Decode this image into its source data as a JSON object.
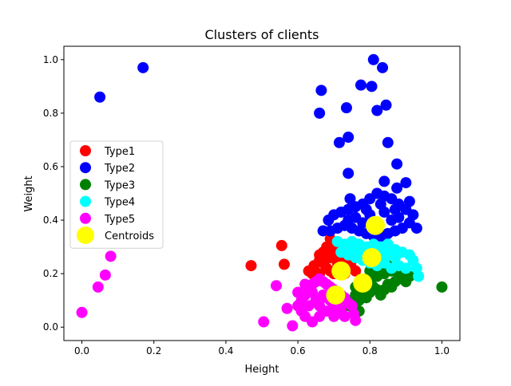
{
  "chart_data": {
    "type": "scatter",
    "title": "Clusters of clients",
    "xlabel": "Height",
    "ylabel": "Weight",
    "xlim": [
      -0.05,
      1.05
    ],
    "ylim": [
      -0.05,
      1.05
    ],
    "xticks": [
      0.0,
      0.2,
      0.4,
      0.6,
      0.8,
      1.0
    ],
    "yticks": [
      0.0,
      0.2,
      0.4,
      0.6,
      0.8,
      1.0
    ],
    "xtick_labels": [
      "0.0",
      "0.2",
      "0.4",
      "0.6",
      "0.8",
      "1.0"
    ],
    "ytick_labels": [
      "0.0",
      "0.2",
      "0.4",
      "0.6",
      "0.8",
      "1.0"
    ],
    "grid": false,
    "legend_position": "center-left",
    "series": [
      {
        "name": "Type1",
        "color": "#ff0000",
        "points": [
          [
            0.47,
            0.23
          ],
          [
            0.555,
            0.305
          ],
          [
            0.562,
            0.235
          ],
          [
            0.63,
            0.21
          ],
          [
            0.645,
            0.23
          ],
          [
            0.66,
            0.25
          ],
          [
            0.67,
            0.28
          ],
          [
            0.68,
            0.3
          ],
          [
            0.69,
            0.33
          ],
          [
            0.7,
            0.31
          ],
          [
            0.71,
            0.29
          ],
          [
            0.72,
            0.27
          ],
          [
            0.73,
            0.26
          ],
          [
            0.74,
            0.24
          ],
          [
            0.75,
            0.22
          ],
          [
            0.76,
            0.21
          ],
          [
            0.68,
            0.22
          ],
          [
            0.7,
            0.2
          ],
          [
            0.72,
            0.22
          ],
          [
            0.66,
            0.2
          ],
          [
            0.65,
            0.18
          ],
          [
            0.69,
            0.26
          ],
          [
            0.67,
            0.24
          ],
          [
            0.71,
            0.24
          ],
          [
            0.64,
            0.2
          ],
          [
            0.75,
            0.25
          ],
          [
            0.73,
            0.2
          ],
          [
            0.69,
            0.21
          ],
          [
            0.66,
            0.27
          ],
          [
            0.7,
            0.28
          ]
        ]
      },
      {
        "name": "Type2",
        "color": "#0000ff",
        "points": [
          [
            0.05,
            0.86
          ],
          [
            0.17,
            0.97
          ],
          [
            0.66,
            0.8
          ],
          [
            0.665,
            0.885
          ],
          [
            0.735,
            0.82
          ],
          [
            0.775,
            0.905
          ],
          [
            0.805,
            0.9
          ],
          [
            0.81,
            1.0
          ],
          [
            0.82,
            0.81
          ],
          [
            0.835,
            0.97
          ],
          [
            0.845,
            0.83
          ],
          [
            0.85,
            0.69
          ],
          [
            0.715,
            0.69
          ],
          [
            0.74,
            0.71
          ],
          [
            0.875,
            0.61
          ],
          [
            0.74,
            0.575
          ],
          [
            0.84,
            0.545
          ],
          [
            0.9,
            0.54
          ],
          [
            0.875,
            0.52
          ],
          [
            0.745,
            0.48
          ],
          [
            0.91,
            0.47
          ],
          [
            0.93,
            0.37
          ],
          [
            0.685,
            0.4
          ],
          [
            0.7,
            0.42
          ],
          [
            0.72,
            0.43
          ],
          [
            0.74,
            0.44
          ],
          [
            0.76,
            0.45
          ],
          [
            0.78,
            0.46
          ],
          [
            0.8,
            0.48
          ],
          [
            0.82,
            0.5
          ],
          [
            0.84,
            0.49
          ],
          [
            0.86,
            0.48
          ],
          [
            0.88,
            0.46
          ],
          [
            0.9,
            0.44
          ],
          [
            0.92,
            0.42
          ],
          [
            0.91,
            0.39
          ],
          [
            0.89,
            0.37
          ],
          [
            0.87,
            0.36
          ],
          [
            0.85,
            0.35
          ],
          [
            0.83,
            0.34
          ],
          [
            0.81,
            0.34
          ],
          [
            0.79,
            0.35
          ],
          [
            0.77,
            0.36
          ],
          [
            0.75,
            0.37
          ],
          [
            0.73,
            0.38
          ],
          [
            0.71,
            0.37
          ],
          [
            0.69,
            0.36
          ],
          [
            0.67,
            0.36
          ],
          [
            0.76,
            0.41
          ],
          [
            0.8,
            0.42
          ],
          [
            0.84,
            0.43
          ],
          [
            0.88,
            0.41
          ],
          [
            0.78,
            0.39
          ],
          [
            0.82,
            0.39
          ],
          [
            0.86,
            0.4
          ],
          [
            0.74,
            0.4
          ],
          [
            0.83,
            0.46
          ],
          [
            0.79,
            0.44
          ],
          [
            0.87,
            0.44
          ],
          [
            0.81,
            0.37
          ]
        ]
      },
      {
        "name": "Type3",
        "color": "#008000",
        "points": [
          [
            1.0,
            0.15
          ],
          [
            0.74,
            0.08
          ],
          [
            0.75,
            0.1
          ],
          [
            0.76,
            0.12
          ],
          [
            0.77,
            0.1
          ],
          [
            0.78,
            0.13
          ],
          [
            0.79,
            0.11
          ],
          [
            0.8,
            0.13
          ],
          [
            0.81,
            0.15
          ],
          [
            0.82,
            0.14
          ],
          [
            0.83,
            0.12
          ],
          [
            0.84,
            0.14
          ],
          [
            0.85,
            0.16
          ],
          [
            0.86,
            0.15
          ],
          [
            0.87,
            0.17
          ],
          [
            0.88,
            0.18
          ],
          [
            0.89,
            0.19
          ],
          [
            0.9,
            0.17
          ],
          [
            0.91,
            0.19
          ],
          [
            0.8,
            0.17
          ],
          [
            0.82,
            0.19
          ],
          [
            0.84,
            0.2
          ],
          [
            0.86,
            0.21
          ],
          [
            0.78,
            0.17
          ],
          [
            0.76,
            0.15
          ],
          [
            0.83,
            0.22
          ],
          [
            0.8,
            0.21
          ],
          [
            0.77,
            0.06
          ],
          [
            0.88,
            0.21
          ],
          [
            0.85,
            0.23
          ]
        ]
      },
      {
        "name": "Type4",
        "color": "#00ffff",
        "points": [
          [
            0.71,
            0.32
          ],
          [
            0.73,
            0.31
          ],
          [
            0.75,
            0.32
          ],
          [
            0.77,
            0.31
          ],
          [
            0.79,
            0.3
          ],
          [
            0.81,
            0.31
          ],
          [
            0.83,
            0.3
          ],
          [
            0.85,
            0.31
          ],
          [
            0.87,
            0.29
          ],
          [
            0.89,
            0.28
          ],
          [
            0.91,
            0.27
          ],
          [
            0.93,
            0.22
          ],
          [
            0.935,
            0.19
          ],
          [
            0.72,
            0.28
          ],
          [
            0.74,
            0.27
          ],
          [
            0.76,
            0.26
          ],
          [
            0.78,
            0.25
          ],
          [
            0.8,
            0.24
          ],
          [
            0.82,
            0.23
          ],
          [
            0.84,
            0.24
          ],
          [
            0.86,
            0.22
          ],
          [
            0.88,
            0.23
          ],
          [
            0.9,
            0.22
          ],
          [
            0.75,
            0.29
          ],
          [
            0.79,
            0.27
          ],
          [
            0.83,
            0.27
          ],
          [
            0.87,
            0.26
          ],
          [
            0.81,
            0.28
          ],
          [
            0.85,
            0.27
          ],
          [
            0.92,
            0.25
          ],
          [
            0.77,
            0.28
          ],
          [
            0.73,
            0.29
          ]
        ]
      },
      {
        "name": "Type5",
        "color": "#ff00ff",
        "points": [
          [
            0.0,
            0.055
          ],
          [
            0.045,
            0.15
          ],
          [
            0.065,
            0.195
          ],
          [
            0.08,
            0.265
          ],
          [
            0.505,
            0.02
          ],
          [
            0.54,
            0.155
          ],
          [
            0.57,
            0.07
          ],
          [
            0.585,
            0.005
          ],
          [
            0.6,
            0.08
          ],
          [
            0.61,
            0.1
          ],
          [
            0.62,
            0.12
          ],
          [
            0.63,
            0.14
          ],
          [
            0.64,
            0.16
          ],
          [
            0.65,
            0.17
          ],
          [
            0.66,
            0.18
          ],
          [
            0.67,
            0.17
          ],
          [
            0.68,
            0.16
          ],
          [
            0.69,
            0.15
          ],
          [
            0.7,
            0.14
          ],
          [
            0.71,
            0.13
          ],
          [
            0.72,
            0.12
          ],
          [
            0.73,
            0.11
          ],
          [
            0.74,
            0.09
          ],
          [
            0.75,
            0.08
          ],
          [
            0.755,
            0.05
          ],
          [
            0.76,
            0.025
          ],
          [
            0.62,
            0.04
          ],
          [
            0.64,
            0.02
          ],
          [
            0.66,
            0.04
          ],
          [
            0.68,
            0.06
          ],
          [
            0.7,
            0.08
          ],
          [
            0.72,
            0.06
          ],
          [
            0.63,
            0.08
          ],
          [
            0.65,
            0.1
          ],
          [
            0.67,
            0.12
          ],
          [
            0.69,
            0.1
          ],
          [
            0.71,
            0.09
          ],
          [
            0.61,
            0.06
          ],
          [
            0.66,
            0.08
          ],
          [
            0.7,
            0.04
          ],
          [
            0.73,
            0.04
          ],
          [
            0.64,
            0.13
          ],
          [
            0.68,
            0.11
          ],
          [
            0.62,
            0.16
          ],
          [
            0.6,
            0.13
          ]
        ]
      },
      {
        "name": "Centroids",
        "color": "#ffff00",
        "points": [
          [
            0.815,
            0.38
          ],
          [
            0.805,
            0.26
          ],
          [
            0.72,
            0.21
          ],
          [
            0.78,
            0.165
          ],
          [
            0.705,
            0.12
          ]
        ]
      }
    ]
  }
}
